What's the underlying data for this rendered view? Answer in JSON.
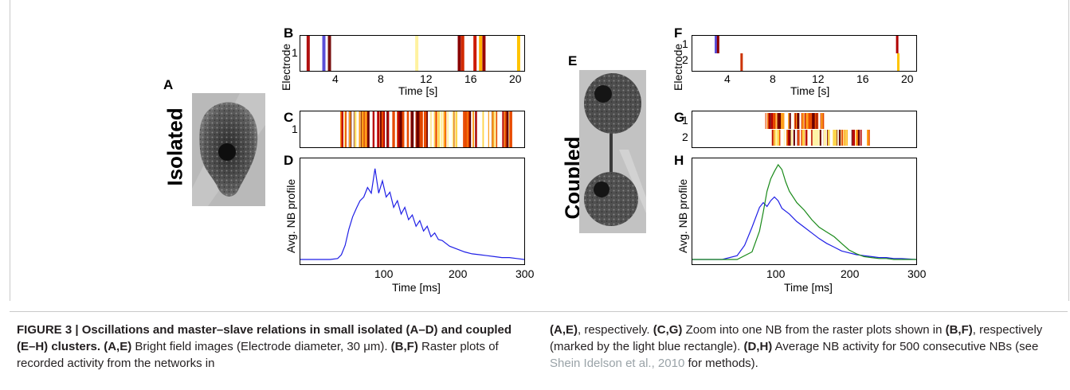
{
  "panel_labels": {
    "A": "A",
    "B": "B",
    "C": "C",
    "D": "D",
    "E": "E",
    "F": "F",
    "G": "G",
    "H": "H"
  },
  "side_labels": {
    "isolated": "Isolated",
    "coupled": "Coupled"
  },
  "axes": {
    "time_s": "Time [s]",
    "time_ms": "Time [ms]",
    "electrode": "Electrode",
    "nb_profile": "Avg. NB profile",
    "s_ticks": [
      "4",
      "8",
      "12",
      "16",
      "20"
    ],
    "ms_ticks": [
      "100",
      "200",
      "300"
    ],
    "electrode_ticks_B": [
      "1"
    ],
    "electrode_ticks_F": [
      "1",
      "2"
    ]
  },
  "chart_data": [
    {
      "panel": "B",
      "type": "heatmap",
      "xlabel": "Time [s]",
      "ylabel": "Electrode",
      "xlim": [
        0,
        20
      ],
      "events": [
        {
          "t": 0.7,
          "c": "#b01010"
        },
        {
          "t": 2.1,
          "c": "#5a4fd8"
        },
        {
          "t": 2.6,
          "c": "#7a1010"
        },
        {
          "t": 10.4,
          "c": "#fff2a0"
        },
        {
          "t": 14.2,
          "c": "#8a0000"
        },
        {
          "t": 14.5,
          "c": "#d22a00"
        },
        {
          "t": 15.6,
          "c": "#cc1b00"
        },
        {
          "t": 16.1,
          "c": "#ffb000"
        },
        {
          "t": 16.4,
          "c": "#9a0000"
        },
        {
          "t": 19.5,
          "c": "#ffc400"
        }
      ]
    },
    {
      "panel": "C",
      "type": "heatmap",
      "ylabel": "Electrode",
      "events": []
    },
    {
      "panel": "D",
      "type": "line",
      "xlabel": "Time [ms]",
      "ylabel": "Avg. NB profile",
      "xlim": [
        0,
        300
      ],
      "ylim": [
        0,
        1
      ],
      "series": [
        {
          "color": "#1f1fe6",
          "x": [
            0,
            40,
            50,
            55,
            60,
            65,
            70,
            75,
            80,
            85,
            90,
            95,
            100,
            105,
            110,
            115,
            120,
            125,
            130,
            135,
            140,
            145,
            150,
            155,
            160,
            165,
            170,
            175,
            180,
            185,
            190,
            200,
            210,
            220,
            230,
            240,
            250,
            260,
            270,
            280,
            290,
            300
          ],
          "y": [
            0,
            0,
            0.01,
            0.05,
            0.15,
            0.32,
            0.45,
            0.54,
            0.62,
            0.66,
            0.76,
            0.7,
            0.96,
            0.7,
            0.83,
            0.66,
            0.71,
            0.55,
            0.62,
            0.48,
            0.55,
            0.42,
            0.47,
            0.35,
            0.41,
            0.3,
            0.35,
            0.24,
            0.28,
            0.21,
            0.2,
            0.14,
            0.11,
            0.08,
            0.06,
            0.05,
            0.04,
            0.03,
            0.02,
            0.02,
            0.01,
            0
          ]
        }
      ]
    },
    {
      "panel": "F",
      "type": "heatmap",
      "xlabel": "Time [s]",
      "ylabel": "Electrode",
      "xlim": [
        0,
        20
      ],
      "events": [
        {
          "t": 2.1,
          "c": "#5a4fd8",
          "row": 1
        },
        {
          "t": 2.3,
          "c": "#8a0000",
          "row": 1
        },
        {
          "t": 4.4,
          "c": "#cc3300",
          "row": 2
        },
        {
          "t": 18.3,
          "c": "#b00000",
          "row": 1
        },
        {
          "t": 18.4,
          "c": "#ffc400",
          "row": 2
        }
      ]
    },
    {
      "panel": "G",
      "type": "heatmap",
      "ylabel": "Electrode",
      "events": []
    },
    {
      "panel": "H",
      "type": "line",
      "xlabel": "Time [ms]",
      "ylabel": "Avg. NB profile",
      "xlim": [
        0,
        300
      ],
      "ylim": [
        0,
        1
      ],
      "series": [
        {
          "color": "#1f1fe6",
          "x": [
            0,
            40,
            60,
            70,
            80,
            90,
            95,
            100,
            105,
            110,
            115,
            120,
            130,
            140,
            150,
            160,
            170,
            180,
            190,
            200,
            210,
            220,
            230,
            240,
            250,
            260,
            270,
            280,
            300
          ],
          "y": [
            0,
            0,
            0.04,
            0.15,
            0.34,
            0.55,
            0.6,
            0.56,
            0.62,
            0.66,
            0.62,
            0.54,
            0.48,
            0.4,
            0.34,
            0.28,
            0.22,
            0.17,
            0.13,
            0.09,
            0.07,
            0.05,
            0.04,
            0.03,
            0.02,
            0.02,
            0.01,
            0.01,
            0
          ]
        },
        {
          "color": "#1a8a1a",
          "x": [
            0,
            60,
            80,
            90,
            95,
            100,
            105,
            110,
            115,
            120,
            125,
            130,
            140,
            150,
            160,
            170,
            180,
            190,
            200,
            210,
            220,
            230,
            240,
            250,
            260,
            270,
            280,
            300
          ],
          "y": [
            0,
            0,
            0.08,
            0.3,
            0.5,
            0.72,
            0.85,
            0.93,
            1.0,
            0.95,
            0.82,
            0.72,
            0.6,
            0.52,
            0.42,
            0.34,
            0.29,
            0.24,
            0.17,
            0.1,
            0.06,
            0.03,
            0.02,
            0.01,
            0.01,
            0,
            0,
            0
          ]
        }
      ]
    }
  ],
  "caption": {
    "col1": [
      {
        "b": "FIGURE 3 | Oscillations and master–slave relations in small isolated (A–D) and coupled (E–H) clusters. "
      },
      {
        "b": "(A,E)",
        "t": " Bright field images (Electrode diameter, 30 μm). "
      },
      {
        "b": "(B,F)",
        "t": " Raster plots of recorded activity from the networks in"
      }
    ],
    "col2": [
      {
        "b": "(A,E)",
        "t": ", respectively. "
      },
      {
        "b": "(C,G)",
        "t": " Zoom into one NB from the raster plots shown in "
      },
      {
        "b": "(B,F)",
        "t": ", respectively (marked by the light blue rectangle). "
      },
      {
        "b": "(D,H)",
        "t": " Average NB activity for 500 consecutive NBs (see "
      },
      {
        "ref": "Shein Idelson et al., 2010"
      },
      {
        "t": " for methods)."
      }
    ]
  }
}
